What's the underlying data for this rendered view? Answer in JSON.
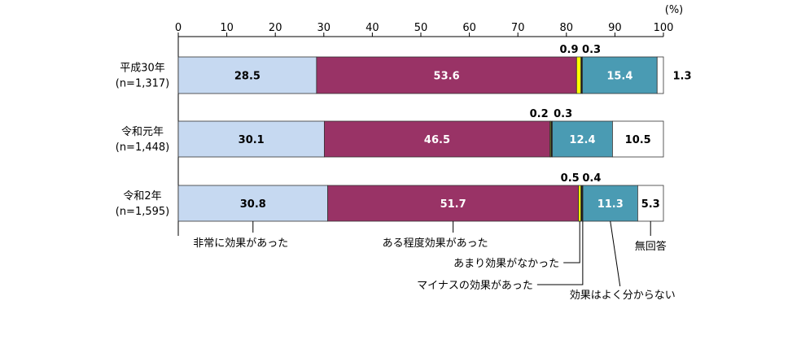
{
  "chart_data": {
    "type": "bar",
    "orientation": "horizontal-stacked",
    "unit_label": "(%)",
    "xlim": [
      0,
      100
    ],
    "ticks": [
      0,
      10,
      20,
      30,
      40,
      50,
      60,
      70,
      80,
      90,
      100
    ],
    "grid": false,
    "categories": [
      {
        "label": "平成30年",
        "n": "(n=1,317)"
      },
      {
        "label": "令和元年",
        "n": "(n=1,448)"
      },
      {
        "label": "令和2年",
        "n": "(n=1,595)"
      }
    ],
    "series": [
      {
        "name": "非常に効果があった",
        "color": "#c6d9f1",
        "values": [
          28.5,
          30.1,
          30.8
        ]
      },
      {
        "name": "ある程度効果があった",
        "color": "#993366",
        "values": [
          53.6,
          46.5,
          51.7
        ]
      },
      {
        "name": "あまり効果がなかった",
        "color": "#ffff00",
        "values": [
          0.9,
          0.2,
          0.5
        ]
      },
      {
        "name": "マイナスの効果があった",
        "color": "#1a1a1a",
        "values": [
          0.3,
          0.3,
          0.4
        ]
      },
      {
        "name": "効果はよく分からない",
        "color": "#4a9bb3",
        "values": [
          15.4,
          12.4,
          11.3
        ]
      },
      {
        "name": "無回答",
        "color": "#ffffff",
        "values": [
          1.3,
          10.5,
          5.3
        ]
      }
    ]
  }
}
